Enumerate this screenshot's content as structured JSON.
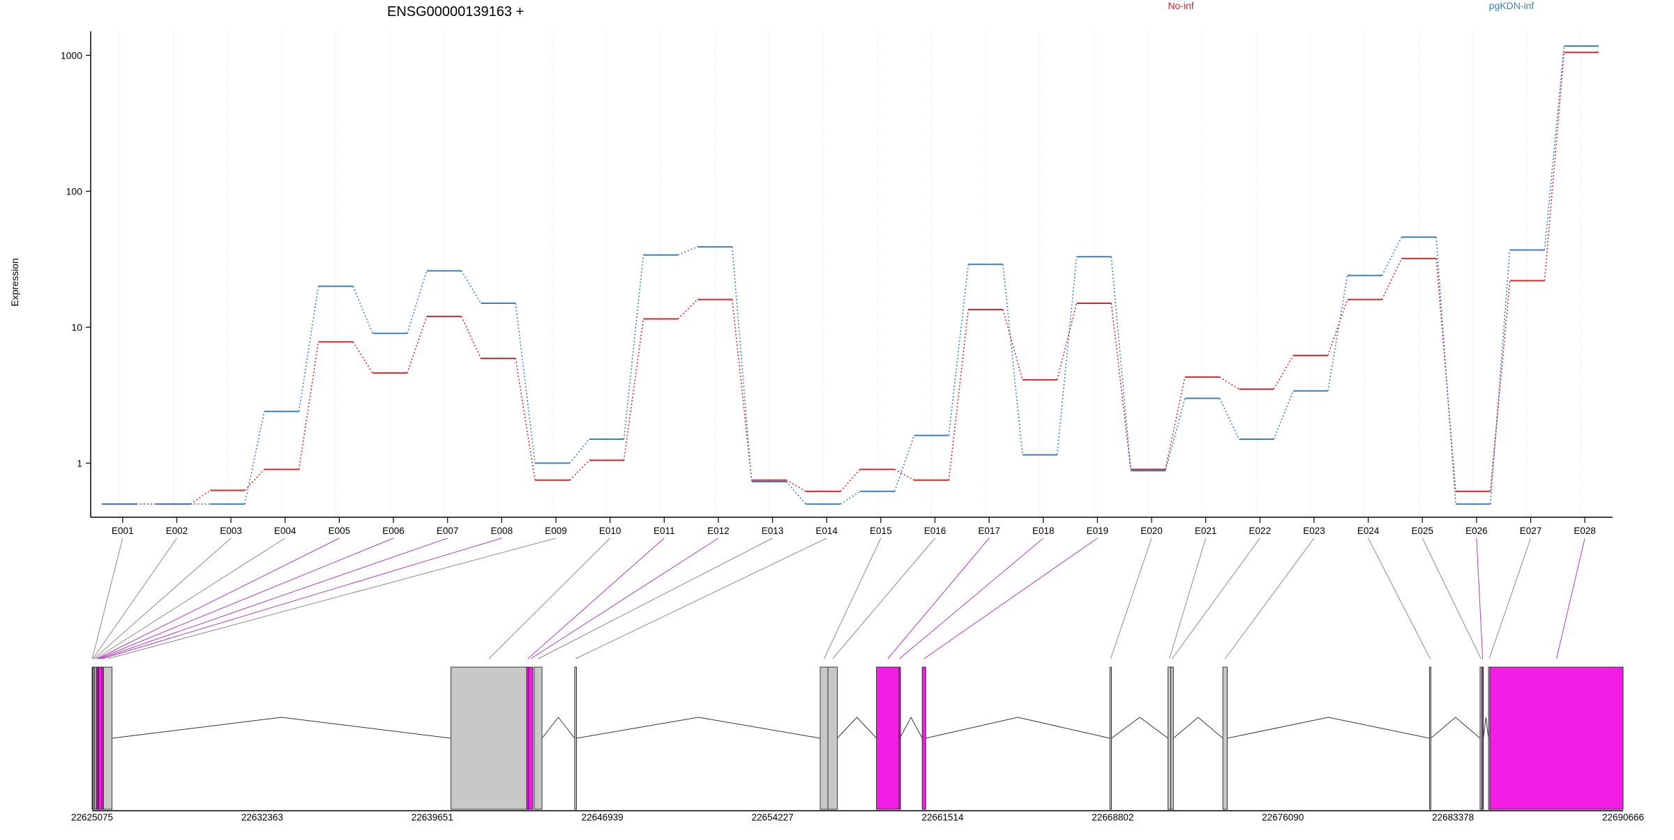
{
  "chart_data": {
    "type": "line",
    "title": "ENSG00000139163 +",
    "ylabel": "Expression",
    "xlabel": "",
    "y_scale": "log10",
    "ylim": [
      0.4,
      1500
    ],
    "y_ticks": [
      1,
      10,
      100,
      1000
    ],
    "y_tick_labels": [
      "1",
      "10",
      "100",
      "1000"
    ],
    "grid": "vertical light dotted lines at exon positions",
    "legend": [
      {
        "label": "No-inf",
        "color": "#d62728"
      },
      {
        "label": "pgKDN-inf",
        "color": "#3a7fc1"
      }
    ],
    "categories": [
      "E001",
      "E002",
      "E003",
      "E004",
      "E005",
      "E006",
      "E007",
      "E008",
      "E009",
      "E010",
      "E011",
      "E012",
      "E013",
      "E014",
      "E015",
      "E016",
      "E017",
      "E018",
      "E019",
      "E020",
      "E021",
      "E022",
      "E023",
      "E024",
      "E025",
      "E026",
      "E027",
      "E028"
    ],
    "series": [
      {
        "name": "No-inf",
        "color": "#d62728",
        "values": [
          0.5,
          0.5,
          0.63,
          0.9,
          7.8,
          4.6,
          12,
          5.9,
          0.75,
          1.05,
          11.5,
          16,
          0.75,
          0.62,
          0.9,
          0.75,
          13.5,
          4.1,
          15,
          0.9,
          4.3,
          3.5,
          6.2,
          16,
          32,
          0.62,
          22,
          1050
        ]
      },
      {
        "name": "pgKDN-inf",
        "color": "#3a7fc1",
        "values": [
          0.5,
          0.5,
          0.5,
          2.4,
          20,
          9,
          26,
          15,
          1.0,
          1.5,
          34,
          39,
          0.73,
          0.5,
          0.62,
          1.6,
          29,
          1.15,
          33,
          0.88,
          3.0,
          1.5,
          3.4,
          24,
          46,
          0.5,
          37,
          1170
        ]
      }
    ],
    "genomic_axis": {
      "range": [
        22625075,
        22690666
      ],
      "ticks": [
        22625075,
        22632363,
        22639651,
        22646939,
        22654227,
        22661514,
        22668802,
        22676090,
        22683378,
        22690666
      ],
      "tick_labels": [
        "22625075",
        "22632363",
        "22639651",
        "22646939",
        "22654227",
        "22661514",
        "22668802",
        "22676090",
        "22683378",
        "22690666"
      ]
    },
    "exons": [
      {
        "id": "E001",
        "start": 22625075,
        "end": 22625090,
        "highlight": false
      },
      {
        "id": "E002",
        "start": 22625090,
        "end": 22625130,
        "highlight": false
      },
      {
        "id": "E003",
        "start": 22625130,
        "end": 22625180,
        "highlight": false
      },
      {
        "id": "E004",
        "start": 22625180,
        "end": 22625260,
        "highlight": false
      },
      {
        "id": "E005",
        "start": 22625260,
        "end": 22625320,
        "highlight": true
      },
      {
        "id": "E006",
        "start": 22625320,
        "end": 22625360,
        "highlight": true
      },
      {
        "id": "E007",
        "start": 22625360,
        "end": 22625480,
        "highlight": true
      },
      {
        "id": "E008",
        "start": 22625480,
        "end": 22625530,
        "highlight": true
      },
      {
        "id": "E009",
        "start": 22625560,
        "end": 22625930,
        "highlight": false
      },
      {
        "id": "E010",
        "start": 22640450,
        "end": 22643700,
        "highlight": false
      },
      {
        "id": "E011",
        "start": 22643700,
        "end": 22643780,
        "highlight": true
      },
      {
        "id": "E012",
        "start": 22643780,
        "end": 22643960,
        "highlight": true
      },
      {
        "id": "E013",
        "start": 22644020,
        "end": 22644350,
        "highlight": false
      },
      {
        "id": "E014",
        "start": 22645750,
        "end": 22645830,
        "highlight": false
      },
      {
        "id": "E015",
        "start": 22656270,
        "end": 22656600,
        "highlight": false
      },
      {
        "id": "E016",
        "start": 22656600,
        "end": 22657000,
        "highlight": false
      },
      {
        "id": "E017",
        "start": 22658680,
        "end": 22659650,
        "highlight": true
      },
      {
        "id": "E018",
        "start": 22659650,
        "end": 22659680,
        "highlight": true
      },
      {
        "id": "E019",
        "start": 22660640,
        "end": 22660790,
        "highlight": true
      },
      {
        "id": "E020",
        "start": 22668680,
        "end": 22668750,
        "highlight": false
      },
      {
        "id": "E021",
        "start": 22671170,
        "end": 22671290,
        "highlight": false
      },
      {
        "id": "E022",
        "start": 22671290,
        "end": 22671400,
        "highlight": false
      },
      {
        "id": "E023",
        "start": 22673520,
        "end": 22673710,
        "highlight": false
      },
      {
        "id": "E024",
        "start": 22682370,
        "end": 22682430,
        "highlight": false
      },
      {
        "id": "E025",
        "start": 22684540,
        "end": 22684620,
        "highlight": false
      },
      {
        "id": "E026",
        "start": 22684620,
        "end": 22684680,
        "highlight": true
      },
      {
        "id": "E027",
        "start": 22684900,
        "end": 22684960,
        "highlight": false
      },
      {
        "id": "E028",
        "start": 22684960,
        "end": 22690666,
        "highlight": true
      }
    ]
  }
}
